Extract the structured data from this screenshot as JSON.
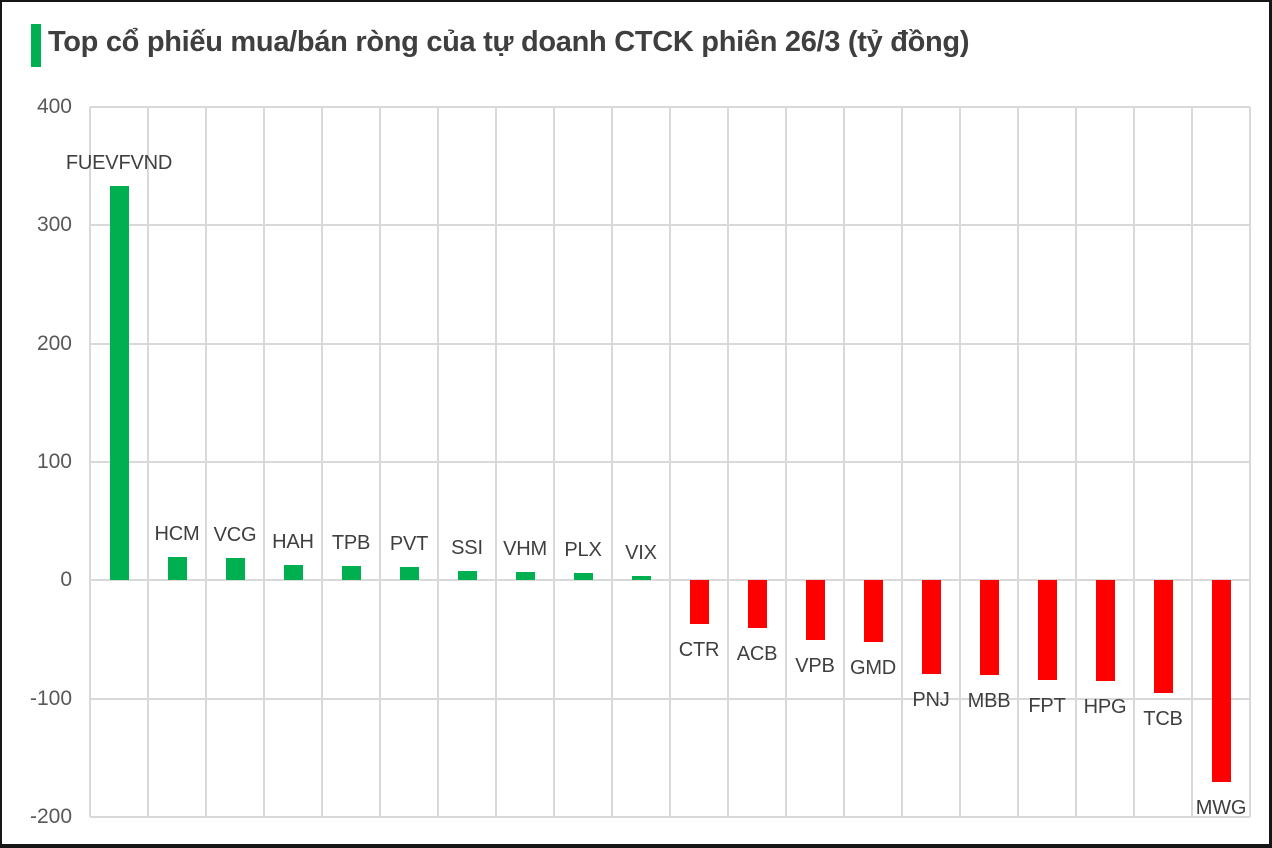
{
  "header": {
    "accent_color": "#00B050",
    "title_color": "#3F3F3F"
  },
  "chart_data": {
    "type": "bar",
    "title": "Top cổ phiếu mua/bán ròng của tự doanh CTCK phiên 26/3 (tỷ đồng)",
    "unit_label": "tỷ đồng",
    "categories": [
      "FUEVFVND",
      "HCM",
      "VCG",
      "HAH",
      "TPB",
      "PVT",
      "SSI",
      "VHM",
      "PLX",
      "VIX",
      "CTR",
      "ACB",
      "VPB",
      "GMD",
      "PNJ",
      "MBB",
      "FPT",
      "HPG",
      "TCB",
      "MWG"
    ],
    "values": [
      333,
      20,
      19,
      13,
      12,
      11,
      8,
      7,
      6,
      4,
      -37,
      -40,
      -50,
      -52,
      -79,
      -80,
      -84,
      -85,
      -95,
      -170
    ],
    "ylim": [
      -200,
      400
    ],
    "y_ticks": [
      400,
      300,
      200,
      100,
      0,
      -100,
      -200
    ],
    "grid": true,
    "legend": "none",
    "positive_color": "#00B050",
    "negative_color": "#FF0000",
    "gridline_color": "#D9D9D9",
    "tick_label_color": "#595959",
    "category_label_color": "#3F3F3F"
  }
}
